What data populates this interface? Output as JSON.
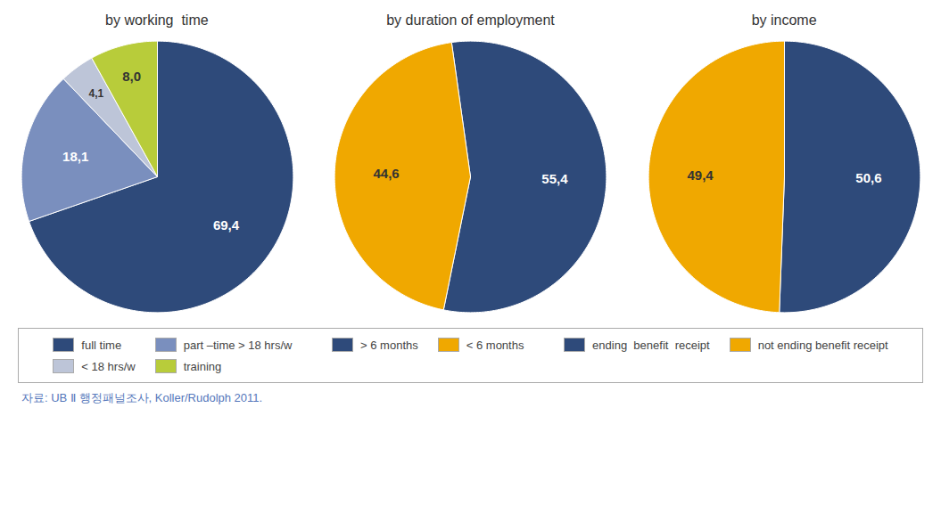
{
  "chart_data": [
    {
      "type": "pie",
      "title": "by working  time",
      "categories": [
        "full time",
        "part –time > 18 hrs/w",
        "< 18 hrs/w",
        "training"
      ],
      "values": [
        69.4,
        18.1,
        4.1,
        8.0
      ],
      "value_labels": [
        "69,4",
        "18,1",
        "4,1",
        "8,0"
      ],
      "colors": [
        "#2e4a7a",
        "#7a8fbe",
        "#bdc5d8",
        "#b8cc3a"
      ],
      "data_labels": true
    },
    {
      "type": "pie",
      "title": "by duration of employment",
      "categories": [
        "> 6 months",
        "< 6 months"
      ],
      "values": [
        55.4,
        44.6
      ],
      "value_labels": [
        "55,4",
        "44,6"
      ],
      "colors": [
        "#2e4a7a",
        "#f0a800"
      ],
      "data_labels": true
    },
    {
      "type": "pie",
      "title": "by income",
      "categories": [
        "ending  benefit  receipt",
        "not ending benefit receipt"
      ],
      "values": [
        50.6,
        49.4
      ],
      "value_labels": [
        "50,6",
        "49,4"
      ],
      "colors": [
        "#2e4a7a",
        "#f0a800"
      ],
      "data_labels": true
    }
  ],
  "caption": "자료: UB Ⅱ 행정패널조사, Koller/Rudolph 2011."
}
